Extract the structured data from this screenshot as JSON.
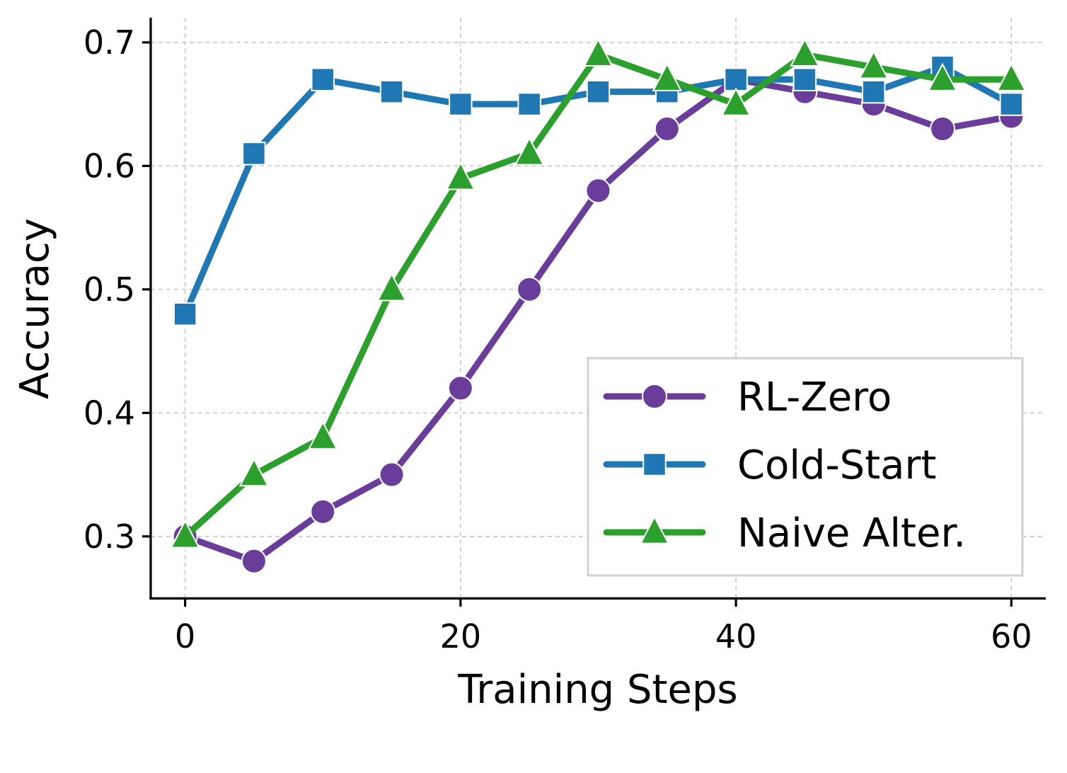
{
  "chart_data": {
    "type": "line",
    "xlabel": "Training Steps",
    "ylabel": "Accuracy",
    "x": [
      0,
      5,
      10,
      15,
      20,
      25,
      30,
      35,
      40,
      45,
      50,
      55,
      60
    ],
    "xlim": [
      -2.5,
      62.5
    ],
    "ylim": [
      0.25,
      0.72
    ],
    "xticks": [
      0,
      20,
      40,
      60
    ],
    "xtick_labels": [
      "0",
      "20",
      "40",
      "60"
    ],
    "yticks": [
      0.3,
      0.4,
      0.5,
      0.6,
      0.7
    ],
    "ytick_labels": [
      "0.3",
      "0.4",
      "0.5",
      "0.6",
      "0.7"
    ],
    "grid": true,
    "legend_position": "bottom-right",
    "series": [
      {
        "name": "RL-Zero",
        "color": "#6a3d9a",
        "marker": "circle",
        "values": [
          0.3,
          0.28,
          0.32,
          0.35,
          0.42,
          0.5,
          0.58,
          0.63,
          0.67,
          0.66,
          0.65,
          0.63,
          0.64
        ]
      },
      {
        "name": "Cold-Start",
        "color": "#1f77b4",
        "marker": "square",
        "values": [
          0.48,
          0.61,
          0.67,
          0.66,
          0.65,
          0.65,
          0.66,
          0.66,
          0.67,
          0.67,
          0.66,
          0.68,
          0.65
        ]
      },
      {
        "name": "Naive Alter.",
        "color": "#2ca02c",
        "marker": "triangle",
        "values": [
          0.3,
          0.35,
          0.38,
          0.5,
          0.59,
          0.61,
          0.69,
          0.67,
          0.65,
          0.69,
          0.68,
          0.67,
          0.67
        ]
      }
    ]
  }
}
